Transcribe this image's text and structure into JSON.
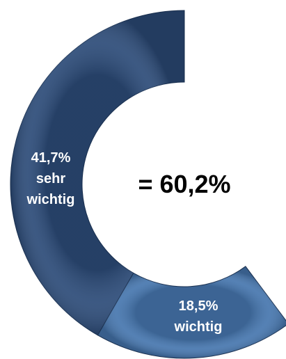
{
  "chart_data": {
    "type": "donut",
    "categories": [
      "sehr wichtig",
      "wichtig"
    ],
    "values": [
      41.7,
      18.5
    ],
    "value_labels": [
      "41,7%",
      "18,5%"
    ],
    "colors": [
      "#2c4b78",
      "#4676ae"
    ],
    "center_label": "= 60,2%"
  }
}
